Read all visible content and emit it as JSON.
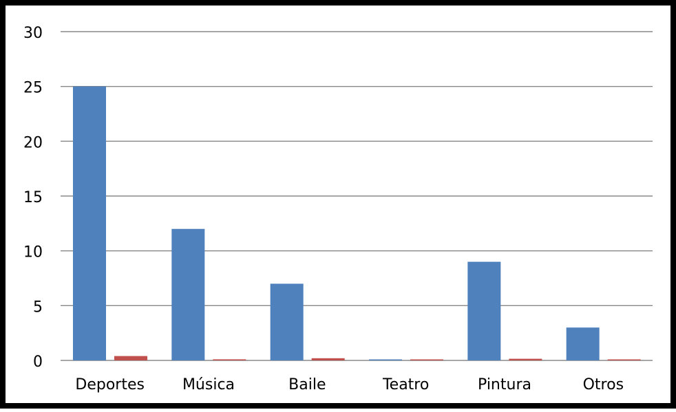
{
  "chart_data": {
    "type": "bar",
    "title": "",
    "xlabel": "",
    "ylabel": "",
    "categories": [
      "Deportes",
      "Música",
      "Baile",
      "Teatro",
      "Pintura",
      "Otros"
    ],
    "series": [
      {
        "values": [
          25,
          12,
          7,
          0,
          9,
          3
        ],
        "color": "#4F81BD"
      },
      {
        "values": [
          0.4,
          0.1,
          0.2,
          0.05,
          0.15,
          0.05
        ],
        "color": "#C0504D"
      }
    ],
    "ylim": [
      0,
      30
    ],
    "yticks": [
      "0",
      "5",
      "10",
      "15",
      "20",
      "25",
      "30"
    ],
    "grid": true,
    "legend": "none"
  },
  "colors": {
    "gridline": "#888888",
    "frame": "#000000",
    "background": "#ffffff"
  }
}
